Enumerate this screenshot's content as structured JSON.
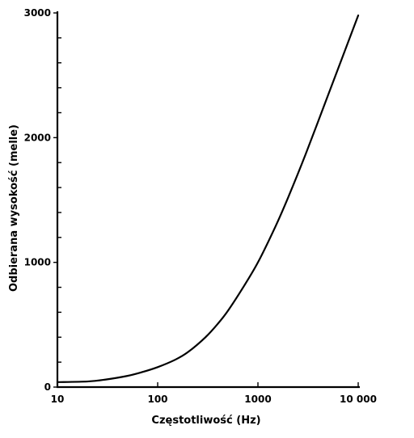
{
  "chart_data": {
    "type": "line",
    "title": "",
    "xlabel": "Częstotliwość (Hz)",
    "ylabel": "Odbierana wysokość (melle)",
    "xscale": "log",
    "xlim": [
      10,
      10000
    ],
    "ylim": [
      0,
      3000
    ],
    "x_ticks": [
      10,
      100,
      1000,
      10000
    ],
    "x_tick_labels": [
      "10",
      "100",
      "1000",
      "10 000"
    ],
    "y_ticks": [
      0,
      1000,
      2000,
      3000
    ],
    "y_tick_labels": [
      "0",
      "1000",
      "2000",
      "3000"
    ],
    "y_minor_step": 200,
    "grid": false,
    "series": [
      {
        "x": [
          10,
          20,
          30,
          50,
          70,
          100,
          150,
          200,
          300,
          400,
          500,
          700,
          1000,
          1500,
          2000,
          3000,
          5000,
          7000,
          10000
        ],
        "y": [
          40,
          45,
          60,
          90,
          120,
          160,
          220,
          280,
          400,
          510,
          610,
          790,
          1000,
          1290,
          1520,
          1870,
          2340,
          2650,
          2980
        ]
      }
    ]
  }
}
